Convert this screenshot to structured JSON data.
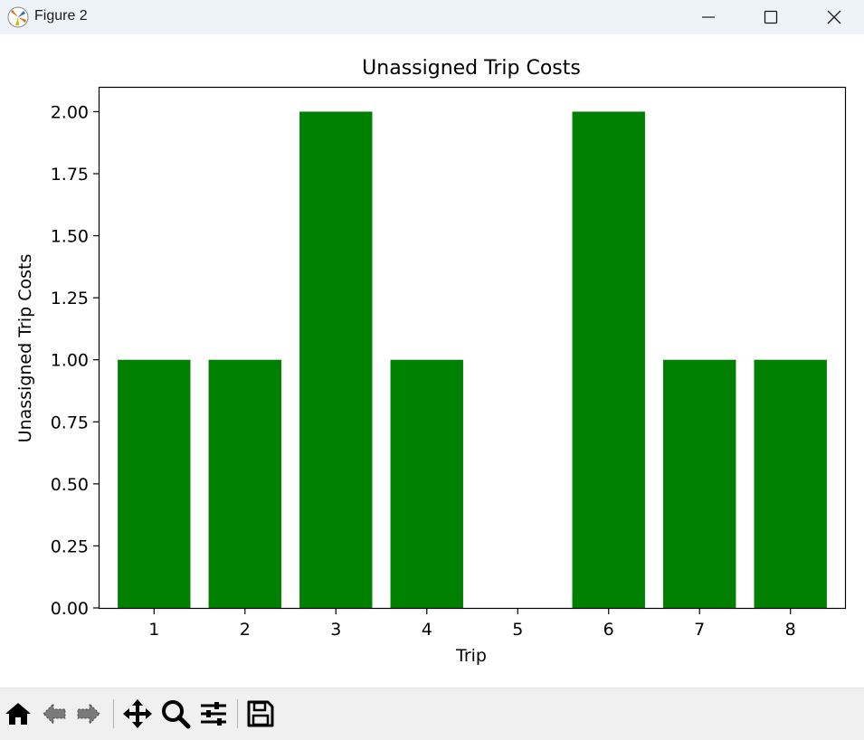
{
  "window": {
    "title": "Figure 2",
    "controls": [
      "minimize-icon",
      "maximize-icon",
      "close-icon"
    ]
  },
  "toolbar": {
    "tools": [
      "home-icon",
      "back-arrow-icon",
      "forward-arrow-icon",
      "pan-icon",
      "zoom-icon",
      "configure-subplots-icon",
      "save-icon"
    ]
  },
  "colors": {
    "bar": "#008000",
    "titlebar": "#eef2f9",
    "toolbar": "#f0f0f0"
  },
  "chart_data": {
    "type": "bar",
    "title": "Unassigned Trip Costs",
    "xlabel": "Trip",
    "ylabel": "Unassigned Trip Costs",
    "categories": [
      "1",
      "2",
      "3",
      "4",
      "5",
      "6",
      "7",
      "8"
    ],
    "values": [
      1,
      1,
      2,
      1,
      0,
      2,
      1,
      1
    ],
    "ylim": [
      0,
      2.1
    ],
    "yticks": [
      "0.00",
      "0.25",
      "0.50",
      "0.75",
      "1.00",
      "1.25",
      "1.50",
      "1.75",
      "2.00"
    ],
    "grid": false,
    "legend": "none"
  }
}
